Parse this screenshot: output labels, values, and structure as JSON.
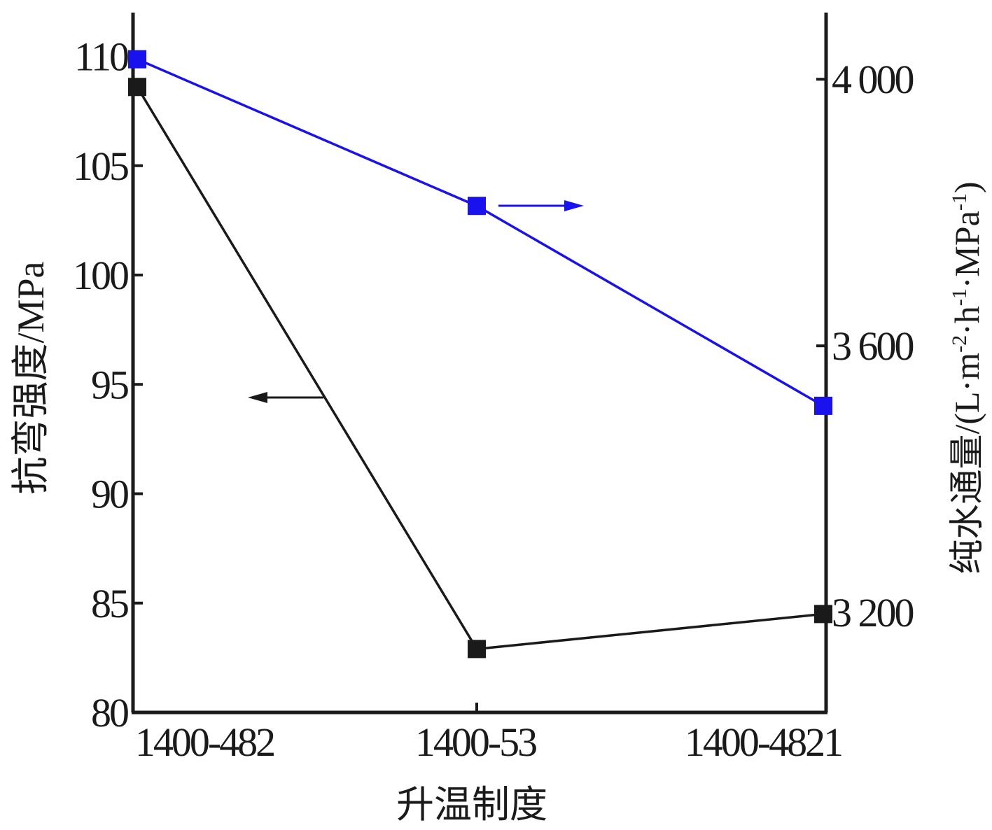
{
  "chart_data": {
    "type": "line",
    "categories": [
      "1400-482",
      "1400-53",
      "1400-4821"
    ],
    "xlabel": "升温制度",
    "y_left": {
      "label": "抗弯强度/MPa",
      "range": [
        80,
        112
      ],
      "ticks": [
        80,
        85,
        90,
        95,
        100,
        105,
        110
      ],
      "tick_labels": [
        "80",
        "85",
        "90",
        "95",
        "100",
        "105",
        "110"
      ]
    },
    "y_right": {
      "label_parts": [
        "纯水通量/(L·m",
        "-2",
        "·h",
        "-1",
        "·MPa",
        "-1",
        ")"
      ],
      "range": [
        3050,
        4100
      ],
      "ticks": [
        3200,
        3600,
        4000
      ],
      "tick_labels": [
        "3 200",
        "3 600",
        "4 000"
      ]
    },
    "series": [
      {
        "axis": "left",
        "color": "#1a1a1a",
        "marker": "square",
        "values": [
          108.6,
          82.9,
          84.5
        ]
      },
      {
        "axis": "right",
        "color": "#1a12ee",
        "marker": "square",
        "values": [
          4030,
          3810,
          3510
        ]
      }
    ],
    "annotations": [
      {
        "type": "arrow",
        "direction": "left",
        "points_to_axis": "left",
        "color": "#1a1a1a"
      },
      {
        "type": "arrow",
        "direction": "right",
        "points_to_axis": "right",
        "color": "#1a12ee"
      }
    ],
    "grid": false,
    "legend": "none"
  }
}
